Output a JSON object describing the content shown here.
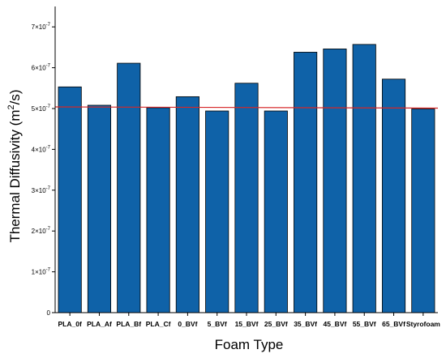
{
  "chart_data": {
    "type": "bar",
    "title": "",
    "xlabel": "Foam Type",
    "ylabel_parts": [
      "Thermal Diffusivity (m",
      "2",
      "/s)"
    ],
    "categories": [
      "PLA_0f",
      "PLA_Af",
      "PLA_Bf",
      "PLA_Cf",
      "0_BVf",
      "5_BVf",
      "15_BVf",
      "25_BVf",
      "35_BVf",
      "45_BVf",
      "55_BVf",
      "65_BVf",
      "Styrofoam"
    ],
    "values": [
      5.53e-07,
      5.08e-07,
      6.11e-07,
      5.02e-07,
      5.29e-07,
      4.94e-07,
      5.62e-07,
      4.94e-07,
      6.38e-07,
      6.46e-07,
      6.57e-07,
      5.72e-07,
      4.99e-07
    ],
    "ylim": [
      0,
      7.5e-07
    ],
    "yticks": [
      0,
      1e-07,
      2e-07,
      3e-07,
      4e-07,
      5e-07,
      6e-07,
      7e-07
    ],
    "ytick_labels": [
      {
        "mantissa": "0",
        "exp": ""
      },
      {
        "mantissa": "1×10",
        "exp": "-7"
      },
      {
        "mantissa": "2×10",
        "exp": "-7"
      },
      {
        "mantissa": "3×10",
        "exp": "-7"
      },
      {
        "mantissa": "4×10",
        "exp": "-7"
      },
      {
        "mantissa": "5×10",
        "exp": "-7"
      },
      {
        "mantissa": "6×10",
        "exp": "-7"
      },
      {
        "mantissa": "7×10",
        "exp": "-7"
      }
    ],
    "reference_line": {
      "y_start": 5.04e-07,
      "y_end": 5.01e-07,
      "color": "#d62728"
    },
    "bar_color": "#0f62a8",
    "bar_edge_color": "#000000",
    "grid": false,
    "legend": "none"
  }
}
